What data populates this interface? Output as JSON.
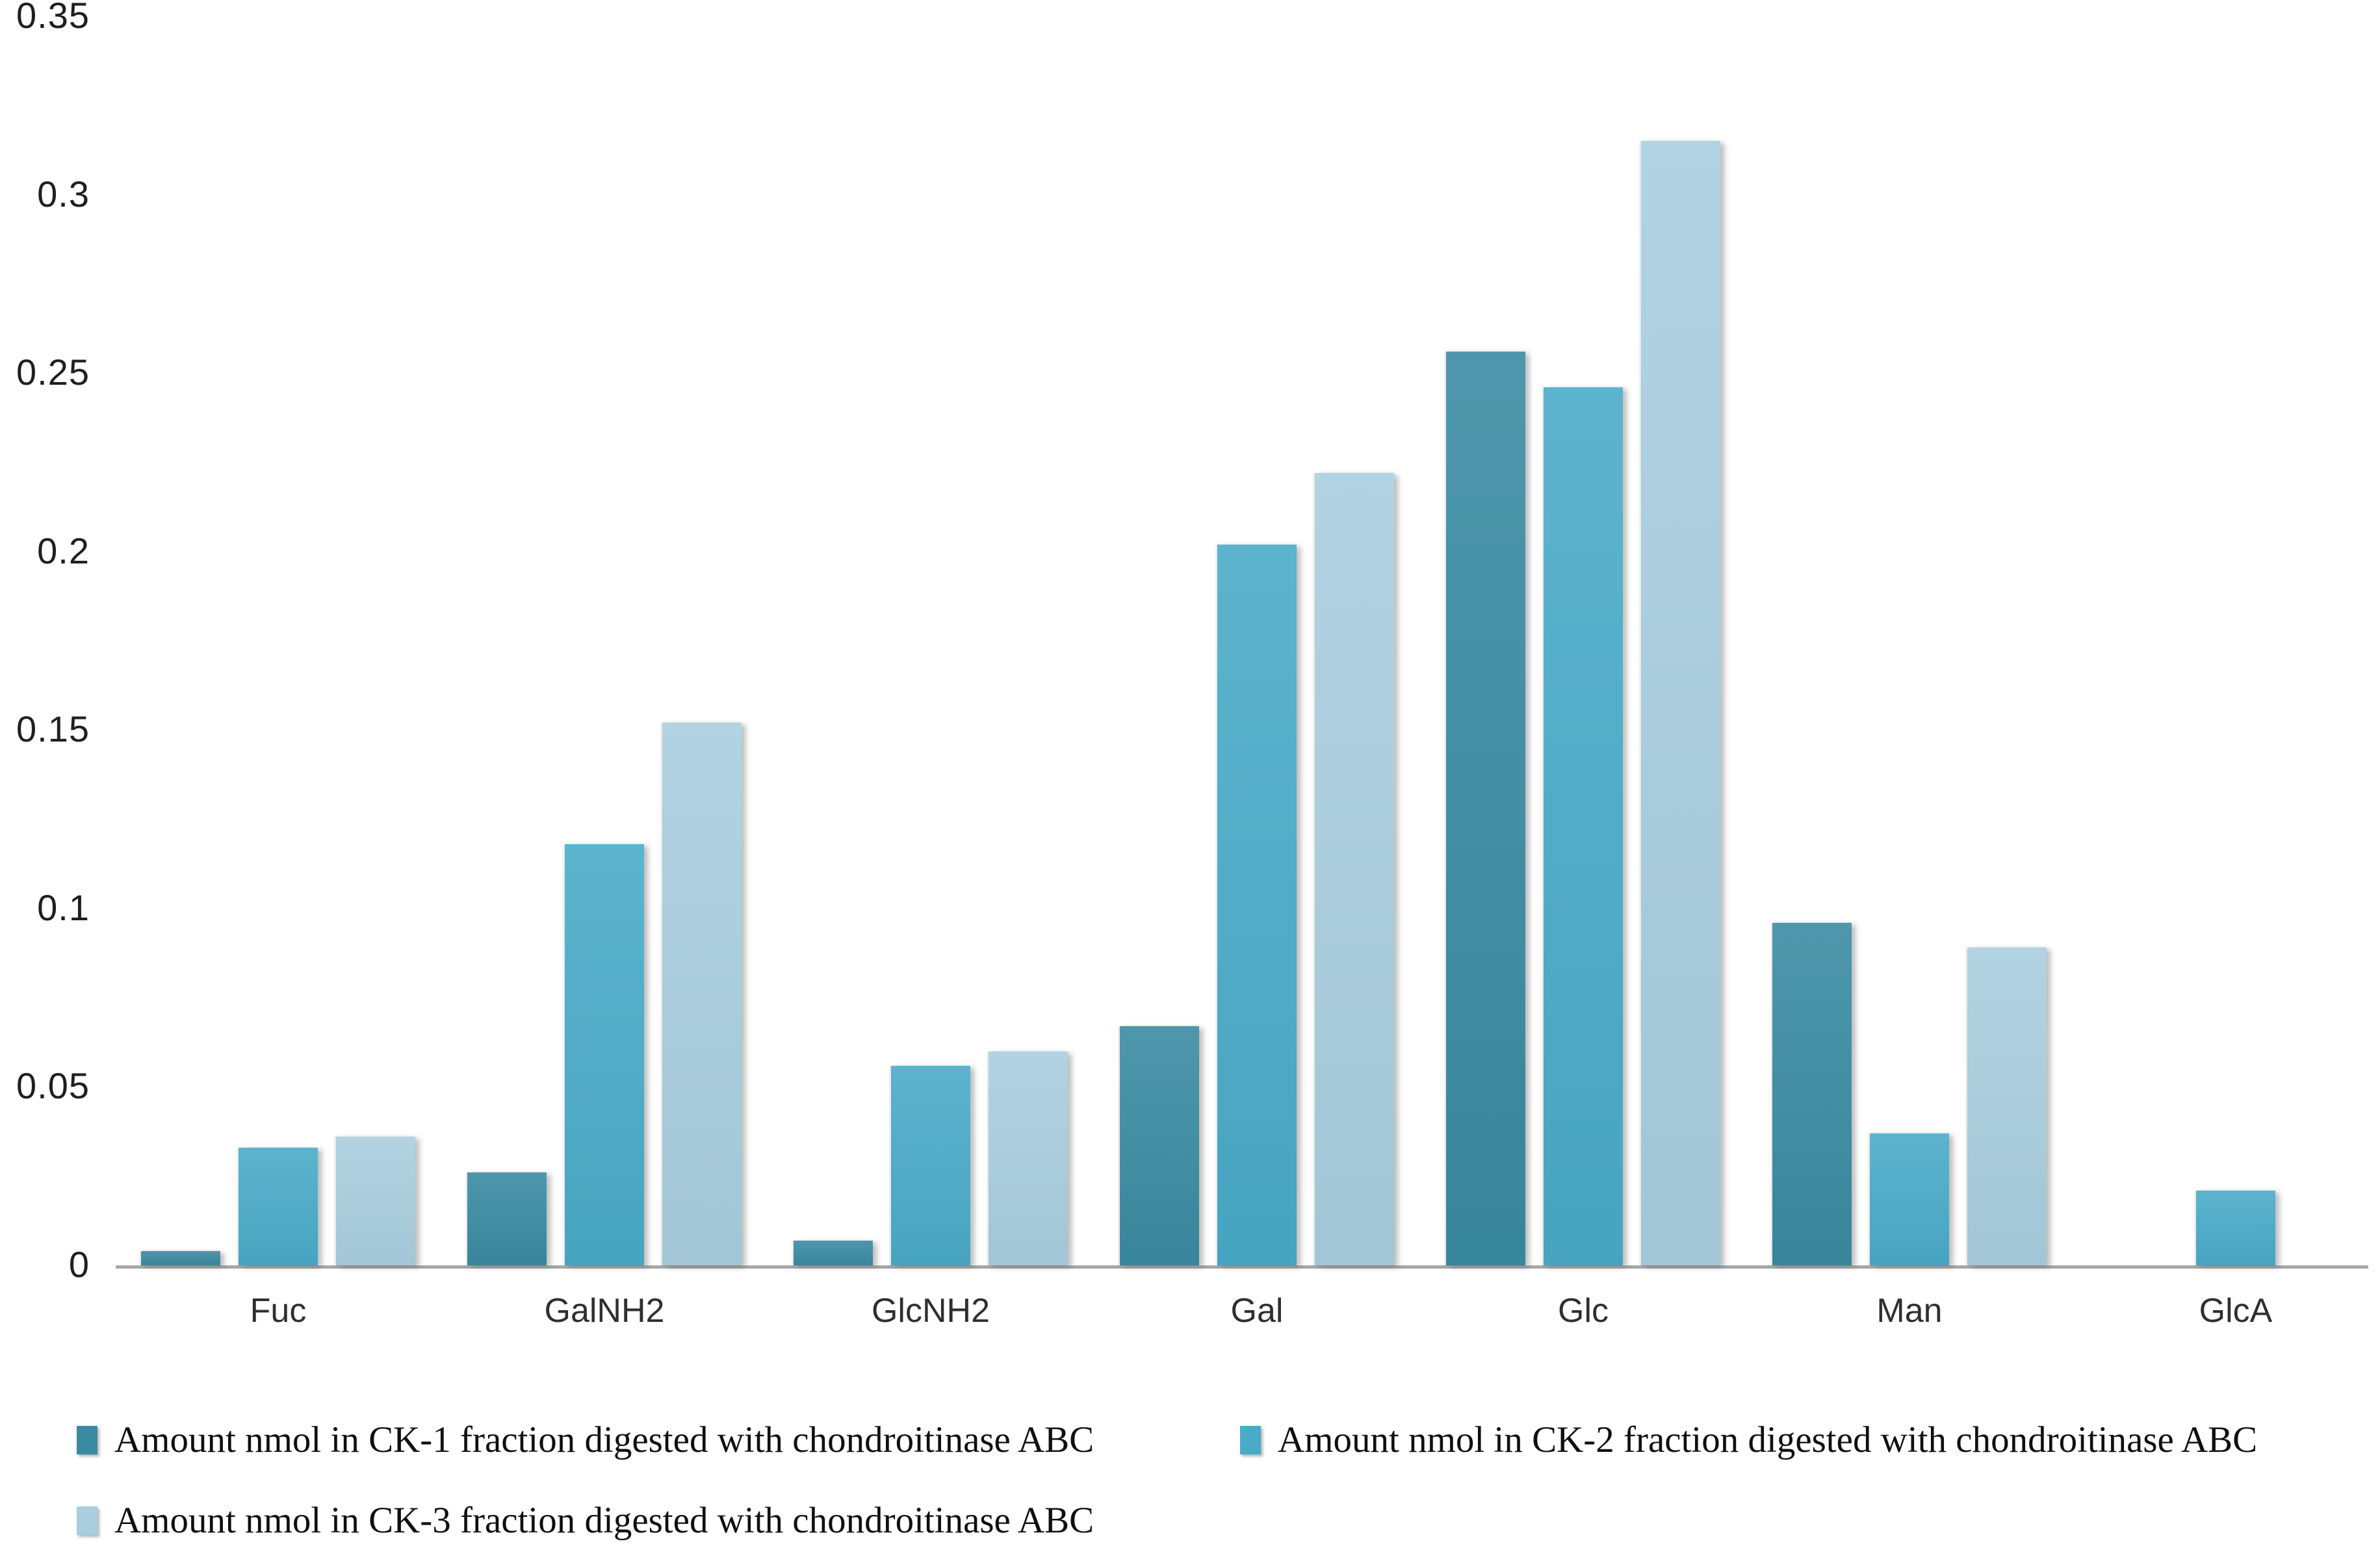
{
  "chart_data": {
    "type": "bar",
    "title": "",
    "xlabel": "",
    "ylabel": "",
    "categories": [
      "Fuc",
      "GalNH2",
      "GlcNH2",
      "Gal",
      "Glc",
      "Man",
      "GlcA"
    ],
    "series": [
      {
        "name": "Amount nmol in CK-1 fraction digested with chondroitinase ABC",
        "color": "#3A8BA2",
        "values": [
          0.004,
          0.026,
          0.007,
          0.067,
          0.256,
          0.096,
          0
        ]
      },
      {
        "name": "Amount nmol in CK-2 fraction digested with chondroitinase ABC",
        "color": "#4AABC8",
        "values": [
          0.033,
          0.118,
          0.056,
          0.202,
          0.246,
          0.037,
          0.021
        ]
      },
      {
        "name": "Amount nmol in CK-3 fraction digested with chondroitinase ABC",
        "color": "#A9CEDE",
        "values": [
          0.036,
          0.152,
          0.06,
          0.222,
          0.315,
          0.089,
          0
        ]
      }
    ],
    "ylim": [
      0,
      0.35
    ],
    "ytick_step": 0.05,
    "ytick_labels": [
      "0",
      "0.05",
      "0.1",
      "0.15",
      "0.2",
      "0.25",
      "0.3",
      "0.35"
    ],
    "grid": false,
    "legend_position": "bottom",
    "axis_line_color": "#A7A7A7"
  }
}
